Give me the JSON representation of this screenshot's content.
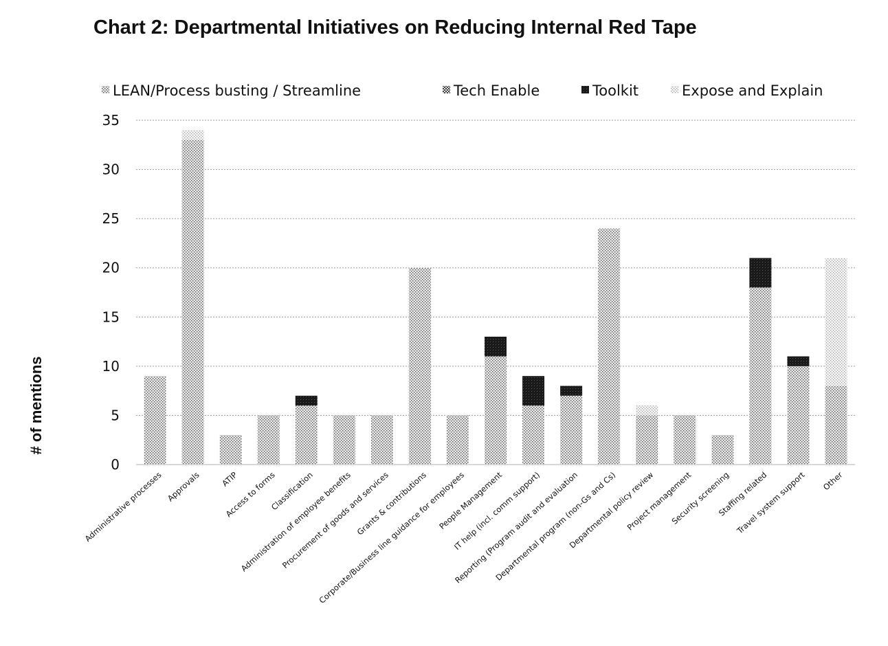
{
  "chart_data": {
    "type": "bar",
    "stacked": true,
    "title": "Chart 2: Departmental Initiatives on Reducing Internal Red Tape",
    "xlabel": "",
    "ylabel": "# of mentions",
    "ylim": [
      0,
      35
    ],
    "yticks": [
      0,
      5,
      10,
      15,
      20,
      25,
      30,
      35
    ],
    "grid": true,
    "legend_position": "top",
    "categories": [
      "Administrative processes",
      "Approvals",
      "ATIP",
      "Access to forms",
      "Classification",
      "Administration of employee benefits",
      "Procurement of goods and services",
      "Grants & contributions",
      "Corporate/Business line guidance for employees",
      "People Management",
      "IT help (incl. comm support)",
      "Reporting (Program audit and evaluation",
      "Departmental program (non-Gs and Cs)",
      "Departmental policy review",
      "Project management",
      "Security screening",
      "Staffing related",
      "Travel system support",
      "Other"
    ],
    "series": [
      {
        "name": "LEAN/Process busting / Streamline",
        "color": "#c8c8c8",
        "pattern": "dense",
        "values": [
          9,
          33,
          3,
          5,
          6,
          5,
          5,
          20,
          5,
          11,
          6,
          7,
          24,
          5,
          5,
          3,
          18,
          10,
          8
        ]
      },
      {
        "name": "Tech Enable",
        "color": "#b4b4b4",
        "pattern": "medium",
        "values": [
          0,
          0,
          0,
          0,
          0,
          0,
          0,
          0,
          0,
          0,
          0,
          0,
          0,
          0,
          0,
          0,
          0,
          0,
          0
        ]
      },
      {
        "name": "Toolkit",
        "color": "#1e1e1e",
        "pattern": "dark",
        "values": [
          0,
          0,
          0,
          0,
          1,
          0,
          0,
          0,
          0,
          2,
          3,
          1,
          0,
          0,
          0,
          0,
          3,
          1,
          0
        ]
      },
      {
        "name": "Expose and Explain",
        "color": "#e4e4e4",
        "pattern": "light",
        "values": [
          0,
          1,
          0,
          0,
          0,
          0,
          0,
          0,
          0,
          0,
          0,
          0,
          0,
          1,
          0,
          0,
          0,
          0,
          13
        ]
      }
    ]
  }
}
